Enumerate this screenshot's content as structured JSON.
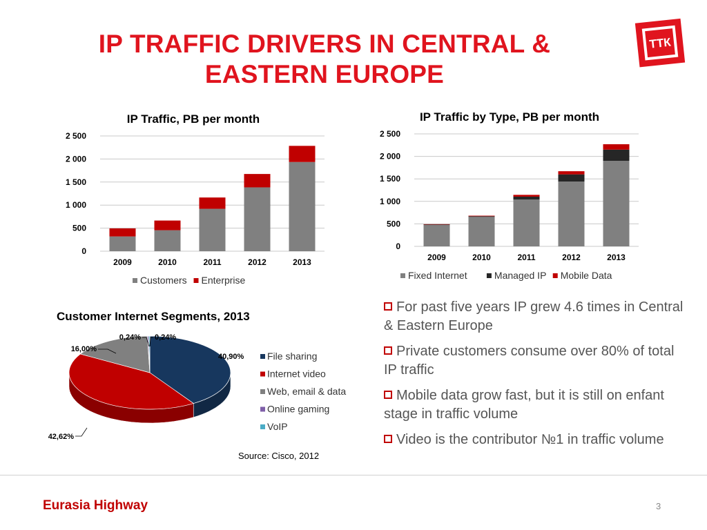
{
  "slide": {
    "title_line1": "IP TRAFFIC DRIVERS IN CENTRAL &",
    "title_line2": "EASTERN EUROPE",
    "logo_text": "ТТК",
    "source": "Source: Cisco, 2012",
    "footer_brand": "Eurasia Highway",
    "page_number": "3"
  },
  "bullets": [
    "For past five years IP grew 4.6 times in Central & Eastern Europe",
    "Private customers consume over 80% of total IP traffic",
    "Mobile data grow fast, but it is still on enfant stage in traffic volume",
    "Video is the contributor №1 in traffic volume"
  ],
  "colors": {
    "accent": "#e0141e",
    "customers": "#808080",
    "enterprise": "#c00000",
    "fixed_internet": "#808080",
    "managed_ip": "#262626",
    "mobile_data": "#c00000",
    "file_sharing": "#17375e",
    "internet_video": "#c00000",
    "web_email_data": "#808080",
    "online_gaming": "#7f5fa8",
    "voip": "#4bacc6"
  },
  "chart_data": [
    {
      "type": "bar",
      "stacked": true,
      "title": "IP  Traffic, PB per month",
      "categories": [
        "2009",
        "2010",
        "2011",
        "2012",
        "2013"
      ],
      "y_ticks": [
        "0",
        "500",
        "1 000",
        "1 500",
        "2 000",
        "2 500"
      ],
      "ylim": [
        0,
        2500
      ],
      "grid": true,
      "legend": "bottom",
      "series": [
        {
          "name": "Customers",
          "values": [
            320,
            455,
            920,
            1385,
            1935
          ]
        },
        {
          "name": "Enterprise",
          "values": [
            175,
            210,
            245,
            290,
            350
          ]
        }
      ]
    },
    {
      "type": "bar",
      "stacked": true,
      "title": "IP  Traffic by Type, PB per month",
      "categories": [
        "2009",
        "2010",
        "2011",
        "2012",
        "2013"
      ],
      "y_ticks": [
        "0",
        "500",
        "1 000",
        "1 500",
        "2 000",
        "2 500"
      ],
      "ylim": [
        0,
        2500
      ],
      "grid": true,
      "legend": "bottom",
      "series": [
        {
          "name": "Fixed Internet",
          "values": [
            475,
            655,
            1040,
            1440,
            1900
          ]
        },
        {
          "name": "Managed IP",
          "values": [
            10,
            15,
            65,
            160,
            250
          ]
        },
        {
          "name": "Mobile Data",
          "values": [
            8,
            12,
            40,
            70,
            120
          ]
        }
      ]
    },
    {
      "type": "pie",
      "title": "Customer Internet Segments, 2013",
      "legend": "right",
      "slices": [
        {
          "name": "File sharing",
          "value": 40.9,
          "label": "40,90%"
        },
        {
          "name": "Internet video",
          "value": 42.62,
          "label": "42,62%"
        },
        {
          "name": "Web, email & data",
          "value": 16.0,
          "label": "16,00%"
        },
        {
          "name": "Online gaming",
          "value": 0.24,
          "label": "0,24%"
        },
        {
          "name": "VoIP",
          "value": 0.24,
          "label": "0,24%"
        }
      ]
    }
  ]
}
